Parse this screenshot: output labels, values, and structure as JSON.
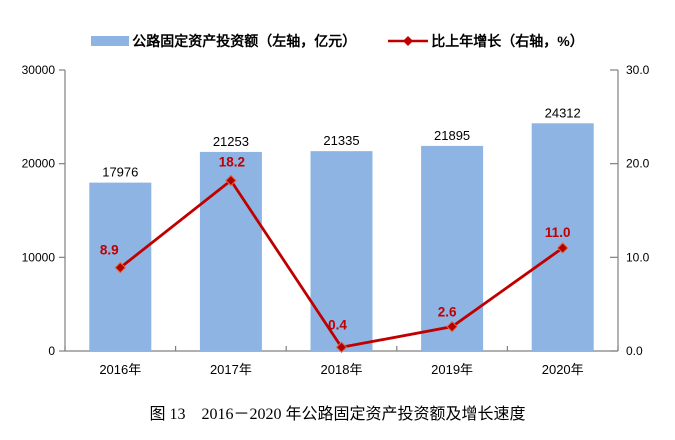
{
  "caption": "图 13　2016－2020 年公路固定资产投资额及增长速度",
  "chart_data": {
    "type": "bar",
    "subtype": "combo-bar-line-dual-axis",
    "categories": [
      "2016年",
      "2017年",
      "2018年",
      "2019年",
      "2020年"
    ],
    "series": [
      {
        "name": "公路固定资产投资额（左轴，亿元）",
        "type": "bar",
        "axis": "left",
        "values": [
          17976,
          21253,
          21335,
          21895,
          24312
        ],
        "data_labels": [
          "17976",
          "21253",
          "21335",
          "21895",
          "24312"
        ],
        "color": "#8DB4E2"
      },
      {
        "name": "比上年增长（右轴，%）",
        "type": "line",
        "axis": "right",
        "values": [
          8.9,
          18.2,
          0.4,
          2.6,
          11.0
        ],
        "data_labels": [
          "8.9",
          "18.2",
          "0.4",
          "2.6",
          "11.0"
        ],
        "color": "#C00000",
        "marker": "diamond"
      }
    ],
    "left_axis": {
      "min": 0,
      "max": 30000,
      "tick_labels": [
        "0",
        "10000",
        "20000",
        "30000"
      ]
    },
    "right_axis": {
      "min": 0,
      "max": 30,
      "tick_labels": [
        "0.0",
        "10.0",
        "20.0",
        "30.0"
      ]
    },
    "grid": "off",
    "legend_position": "top",
    "colors": {
      "bar": "#8DB4E2",
      "line": "#C00000",
      "marker_fill": "#B00000",
      "marker_stroke": "#E8623C",
      "axis": "#808080",
      "bar_label": "#000000",
      "line_label": "#C00000"
    }
  }
}
